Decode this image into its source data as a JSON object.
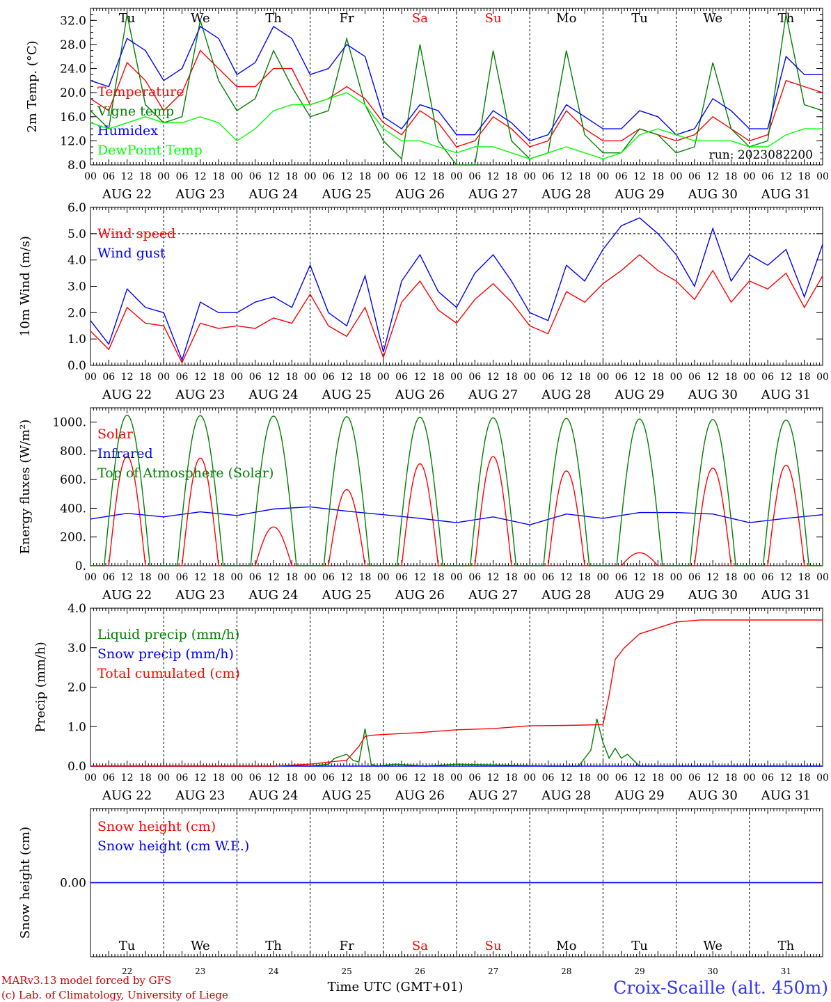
{
  "chart_data": [
    {
      "type": "line",
      "id": "temp",
      "ylabel": "2m Temp. (°C)",
      "ylim": [
        8.0,
        34.0
      ],
      "yticks": [
        "8.0",
        "12.0",
        "16.0",
        "20.0",
        "24.0",
        "28.0",
        "32.0"
      ],
      "ytick_values": [
        8,
        12,
        16,
        20,
        24,
        28,
        32
      ],
      "annotation": "run: 2023082200",
      "series": [
        {
          "name": "Temperature",
          "color": "#ff0000",
          "x": [
            0,
            6,
            12,
            18,
            24,
            30,
            36,
            42,
            48,
            54,
            60,
            66,
            72,
            78,
            84,
            90,
            96,
            102,
            108,
            114,
            120,
            126,
            132,
            138,
            144,
            150,
            156,
            162,
            168,
            174,
            180,
            186,
            192,
            198,
            204,
            210,
            216,
            222,
            228,
            234,
            240
          ],
          "y": [
            19,
            17,
            25,
            22,
            17,
            20,
            27,
            24,
            21,
            21,
            24,
            24,
            18,
            19,
            21,
            19,
            15,
            13,
            17,
            15,
            11,
            12,
            16,
            14,
            11,
            12,
            17,
            14,
            12,
            12,
            14,
            13,
            12,
            13,
            16,
            14,
            12,
            13,
            22,
            21,
            20
          ]
        },
        {
          "name": "Vigne temp",
          "color": "#008000",
          "x": [
            0,
            6,
            12,
            18,
            24,
            30,
            36,
            42,
            48,
            54,
            60,
            66,
            72,
            78,
            84,
            90,
            96,
            102,
            108,
            114,
            120,
            126,
            132,
            138,
            144,
            150,
            156,
            162,
            168,
            174,
            180,
            186,
            192,
            198,
            204,
            210,
            216,
            222,
            228,
            234,
            240
          ],
          "y": [
            17,
            14,
            33,
            18,
            15,
            16,
            32,
            22,
            17,
            19,
            27,
            21,
            16,
            17,
            29,
            18,
            12,
            9,
            28,
            12,
            8,
            8,
            27,
            12,
            9,
            10,
            27,
            13,
            10,
            10,
            14,
            13,
            10,
            11,
            25,
            14,
            11,
            12,
            33,
            18,
            17
          ]
        },
        {
          "name": "Humidex",
          "color": "#0000ff",
          "x": [
            0,
            6,
            12,
            18,
            24,
            30,
            36,
            42,
            48,
            54,
            60,
            66,
            72,
            78,
            84,
            90,
            96,
            102,
            108,
            114,
            120,
            126,
            132,
            138,
            144,
            150,
            156,
            162,
            168,
            174,
            180,
            186,
            192,
            198,
            204,
            210,
            216,
            222,
            228,
            234,
            240
          ],
          "y": [
            22,
            21,
            29,
            27,
            22,
            24,
            31,
            29,
            23,
            25,
            31,
            29,
            23,
            24,
            28,
            26,
            16,
            14,
            18,
            17,
            13,
            13,
            17,
            15,
            12,
            13,
            18,
            16,
            14,
            14,
            17,
            16,
            13,
            14,
            19,
            17,
            14,
            14,
            26,
            23,
            23
          ]
        },
        {
          "name": "DewPoint Temp",
          "color": "#00ff00",
          "x": [
            0,
            6,
            12,
            18,
            24,
            30,
            36,
            42,
            48,
            54,
            60,
            66,
            72,
            78,
            84,
            90,
            96,
            102,
            108,
            114,
            120,
            126,
            132,
            138,
            144,
            150,
            156,
            162,
            168,
            174,
            180,
            186,
            192,
            198,
            204,
            210,
            216,
            222,
            228,
            234,
            240
          ],
          "y": [
            15,
            14,
            15,
            16,
            15,
            15,
            16,
            15,
            12,
            14,
            17,
            18,
            18,
            19,
            20,
            18,
            14,
            12,
            12,
            11,
            10,
            11,
            11,
            10,
            9,
            10,
            11,
            10,
            9,
            10,
            13,
            14,
            13,
            12,
            12,
            12,
            11,
            11,
            13,
            14,
            14
          ]
        }
      ]
    },
    {
      "type": "line",
      "id": "wind",
      "ylabel": "10m Wind (m/s)",
      "ylim": [
        0.0,
        6.0
      ],
      "yticks": [
        "0.0",
        "1.0",
        "2.0",
        "3.0",
        "4.0",
        "5.0",
        "6.0"
      ],
      "ytick_values": [
        0,
        1,
        2,
        3,
        4,
        5,
        6
      ],
      "dashed_ref": 5.0,
      "series": [
        {
          "name": "Wind speed",
          "color": "#ff0000",
          "x": [
            0,
            6,
            12,
            18,
            24,
            30,
            36,
            42,
            48,
            54,
            60,
            66,
            72,
            78,
            84,
            90,
            96,
            102,
            108,
            114,
            120,
            126,
            132,
            138,
            144,
            150,
            156,
            162,
            168,
            174,
            180,
            186,
            192,
            198,
            204,
            210,
            216,
            222,
            228,
            234,
            240
          ],
          "y": [
            1.3,
            0.6,
            2.2,
            1.6,
            1.5,
            0.1,
            1.6,
            1.4,
            1.5,
            1.4,
            1.8,
            1.6,
            2.7,
            1.5,
            1.1,
            2.2,
            0.3,
            2.4,
            3.2,
            2.1,
            1.6,
            2.5,
            3.1,
            2.4,
            1.5,
            1.2,
            2.8,
            2.4,
            3.1,
            3.6,
            4.2,
            3.6,
            3.2,
            2.5,
            3.6,
            2.4,
            3.2,
            2.9,
            3.5,
            2.2,
            3.4
          ]
        },
        {
          "name": "Wind gust",
          "color": "#0000ff",
          "x": [
            0,
            6,
            12,
            18,
            24,
            30,
            36,
            42,
            48,
            54,
            60,
            66,
            72,
            78,
            84,
            90,
            96,
            102,
            108,
            114,
            120,
            126,
            132,
            138,
            144,
            150,
            156,
            162,
            168,
            174,
            180,
            186,
            192,
            198,
            204,
            210,
            216,
            222,
            228,
            234,
            240
          ],
          "y": [
            1.7,
            0.8,
            2.9,
            2.2,
            2.0,
            0.2,
            2.4,
            2.0,
            2.0,
            2.4,
            2.6,
            2.2,
            3.8,
            2.0,
            1.5,
            3.4,
            0.5,
            3.2,
            4.2,
            2.8,
            2.2,
            3.5,
            4.2,
            3.2,
            2.0,
            1.7,
            3.8,
            3.2,
            4.4,
            5.3,
            5.6,
            5.0,
            4.2,
            3.0,
            5.2,
            3.2,
            4.2,
            3.8,
            4.4,
            2.6,
            4.6
          ]
        }
      ]
    },
    {
      "type": "line",
      "id": "energy",
      "ylabel": "Energy fluxes (W/m²)",
      "ylim": [
        0,
        1100
      ],
      "yticks": [
        "0.",
        "200.",
        "400.",
        "600.",
        "800.",
        "1000."
      ],
      "ytick_values": [
        0,
        200,
        400,
        600,
        800,
        1000
      ],
      "series": [
        {
          "name": "Solar",
          "color": "#ff0000",
          "daily_peak": [
            760,
            750,
            270,
            530,
            710,
            760,
            660,
            90,
            680,
            700
          ]
        },
        {
          "name": "Infrared",
          "color": "#0000ff",
          "x": [
            0,
            12,
            24,
            36,
            48,
            60,
            72,
            84,
            96,
            108,
            120,
            132,
            144,
            156,
            168,
            180,
            192,
            204,
            216,
            228,
            240
          ],
          "y": [
            325,
            365,
            340,
            375,
            350,
            395,
            410,
            380,
            355,
            330,
            300,
            340,
            285,
            360,
            330,
            370,
            370,
            360,
            300,
            330,
            355
          ]
        },
        {
          "name": "Top of Atmosphere (Solar)",
          "color": "#008000",
          "daily_peak": [
            1048,
            1045,
            1042,
            1038,
            1034,
            1030,
            1026,
            1022,
            1018,
            1014
          ]
        }
      ]
    },
    {
      "type": "line",
      "id": "precip",
      "ylabel": "Precip (mm/h)",
      "ylim": [
        0.0,
        4.0
      ],
      "yticks": [
        "0.0",
        "1.0",
        "2.0",
        "3.0",
        "4.0"
      ],
      "ytick_values": [
        0,
        1,
        2,
        3,
        4
      ],
      "series": [
        {
          "name": "Liquid precip (mm/h)",
          "color": "#008000",
          "x": [
            0,
            60,
            66,
            72,
            78,
            80,
            84,
            86,
            88,
            90,
            92,
            94,
            100,
            110,
            120,
            150,
            160,
            164,
            165,
            166,
            168,
            170,
            172,
            174,
            176,
            180,
            240
          ],
          "y": [
            0,
            0,
            0.02,
            0,
            0.05,
            0.2,
            0.3,
            0.15,
            0.1,
            0.95,
            0.05,
            0,
            0.05,
            0,
            0.05,
            0,
            0,
            0.4,
            0.8,
            1.2,
            0.6,
            0.2,
            0.45,
            0.2,
            0.3,
            0,
            0
          ]
        },
        {
          "name": "Snow precip (mm/h)",
          "color": "#0000ff",
          "x": [
            0,
            240
          ],
          "y": [
            0,
            0
          ]
        },
        {
          "name": "Total cumulated (cm)",
          "color": "#ff0000",
          "x": [
            0,
            60,
            72,
            84,
            88,
            90,
            92,
            96,
            108,
            120,
            132,
            144,
            156,
            168,
            170,
            172,
            175,
            180,
            186,
            192,
            200,
            240
          ],
          "y": [
            0,
            0,
            0.05,
            0.15,
            0.5,
            0.75,
            0.78,
            0.8,
            0.85,
            0.92,
            0.95,
            1.02,
            1.03,
            1.05,
            1.8,
            2.7,
            3.0,
            3.35,
            3.5,
            3.65,
            3.7,
            3.7
          ]
        }
      ]
    },
    {
      "type": "line",
      "id": "snow",
      "ylabel": "Snow height (cm)",
      "ylim": [
        -1.0,
        1.0
      ],
      "yticks": [
        "0.00"
      ],
      "ytick_values": [
        0
      ],
      "series": [
        {
          "name": "Snow height (cm)",
          "color": "#ff0000",
          "x": [
            0,
            240
          ],
          "y": [
            0,
            0
          ]
        },
        {
          "name": "Snow height (cm W.E.)",
          "color": "#0000ff",
          "x": [
            0,
            240
          ],
          "y": [
            0,
            0
          ]
        }
      ]
    }
  ],
  "axis": {
    "hour_ticks": [
      "00",
      "06",
      "12",
      "18"
    ],
    "end_tick": "00",
    "dates": [
      "AUG 22",
      "AUG 23",
      "AUG 24",
      "AUG 25",
      "AUG 26",
      "AUG 27",
      "AUG 28",
      "AUG 29",
      "AUG 30",
      "AUG 31"
    ],
    "weekdays": [
      "Tu",
      "We",
      "Th",
      "Fr",
      "Sa",
      "Su",
      "Mo",
      "Tu",
      "We",
      "Th"
    ],
    "weekday_colors": [
      "#000000",
      "#000000",
      "#000000",
      "#000000",
      "#ff0000",
      "#ff0000",
      "#000000",
      "#000000",
      "#000000",
      "#000000"
    ],
    "day_numbers": [
      "22",
      "23",
      "24",
      "25",
      "26",
      "27",
      "28",
      "29",
      "30",
      "31"
    ],
    "xlabel": "Time UTC (GMT+01)"
  },
  "footer": {
    "credit_line1": "MARv3.13 model forced by GFS",
    "credit_line2": "(c) Lab. of Climatology, University of Liege",
    "station": "Croix-Scaille (alt. 450m)"
  },
  "colors": {
    "red": "#ff0000",
    "green": "#008000",
    "blue": "#0000ff",
    "lime": "#00ff00",
    "station": "#3333ff",
    "credit": "#cc0000"
  }
}
